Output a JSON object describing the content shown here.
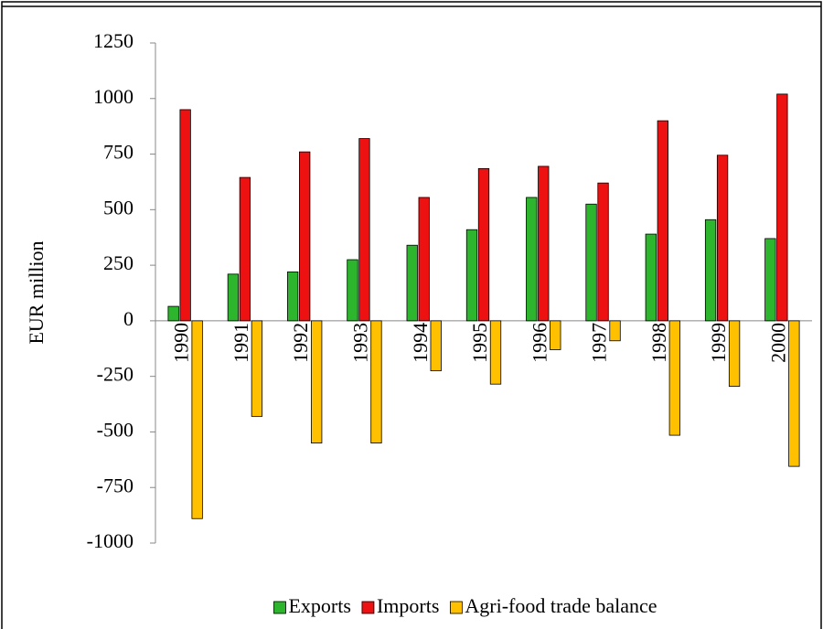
{
  "chart_data": {
    "type": "bar",
    "y_label": "EUR million",
    "categories": [
      "1990",
      "1991",
      "1992",
      "1993",
      "1994",
      "1995",
      "1996",
      "1997",
      "1998",
      "1999",
      "2000"
    ],
    "series": [
      {
        "name": "Exports",
        "color": "#2db52d",
        "values": [
          65,
          210,
          220,
          275,
          340,
          410,
          555,
          525,
          390,
          455,
          370
        ]
      },
      {
        "name": "Imports",
        "color": "#ee1111",
        "values": [
          950,
          645,
          760,
          820,
          555,
          685,
          695,
          620,
          900,
          745,
          1020
        ]
      },
      {
        "name": "Agri-food trade balance",
        "color": "#ffc000",
        "values": [
          -890,
          -430,
          -550,
          -550,
          -225,
          -285,
          -130,
          -90,
          -515,
          -295,
          -655
        ]
      }
    ],
    "ylim": [
      -1000,
      1250
    ],
    "yticks": [
      -1000,
      -750,
      -500,
      -250,
      0,
      250,
      500,
      750,
      1000,
      1250
    ],
    "grid": false,
    "legend": "bottom"
  }
}
